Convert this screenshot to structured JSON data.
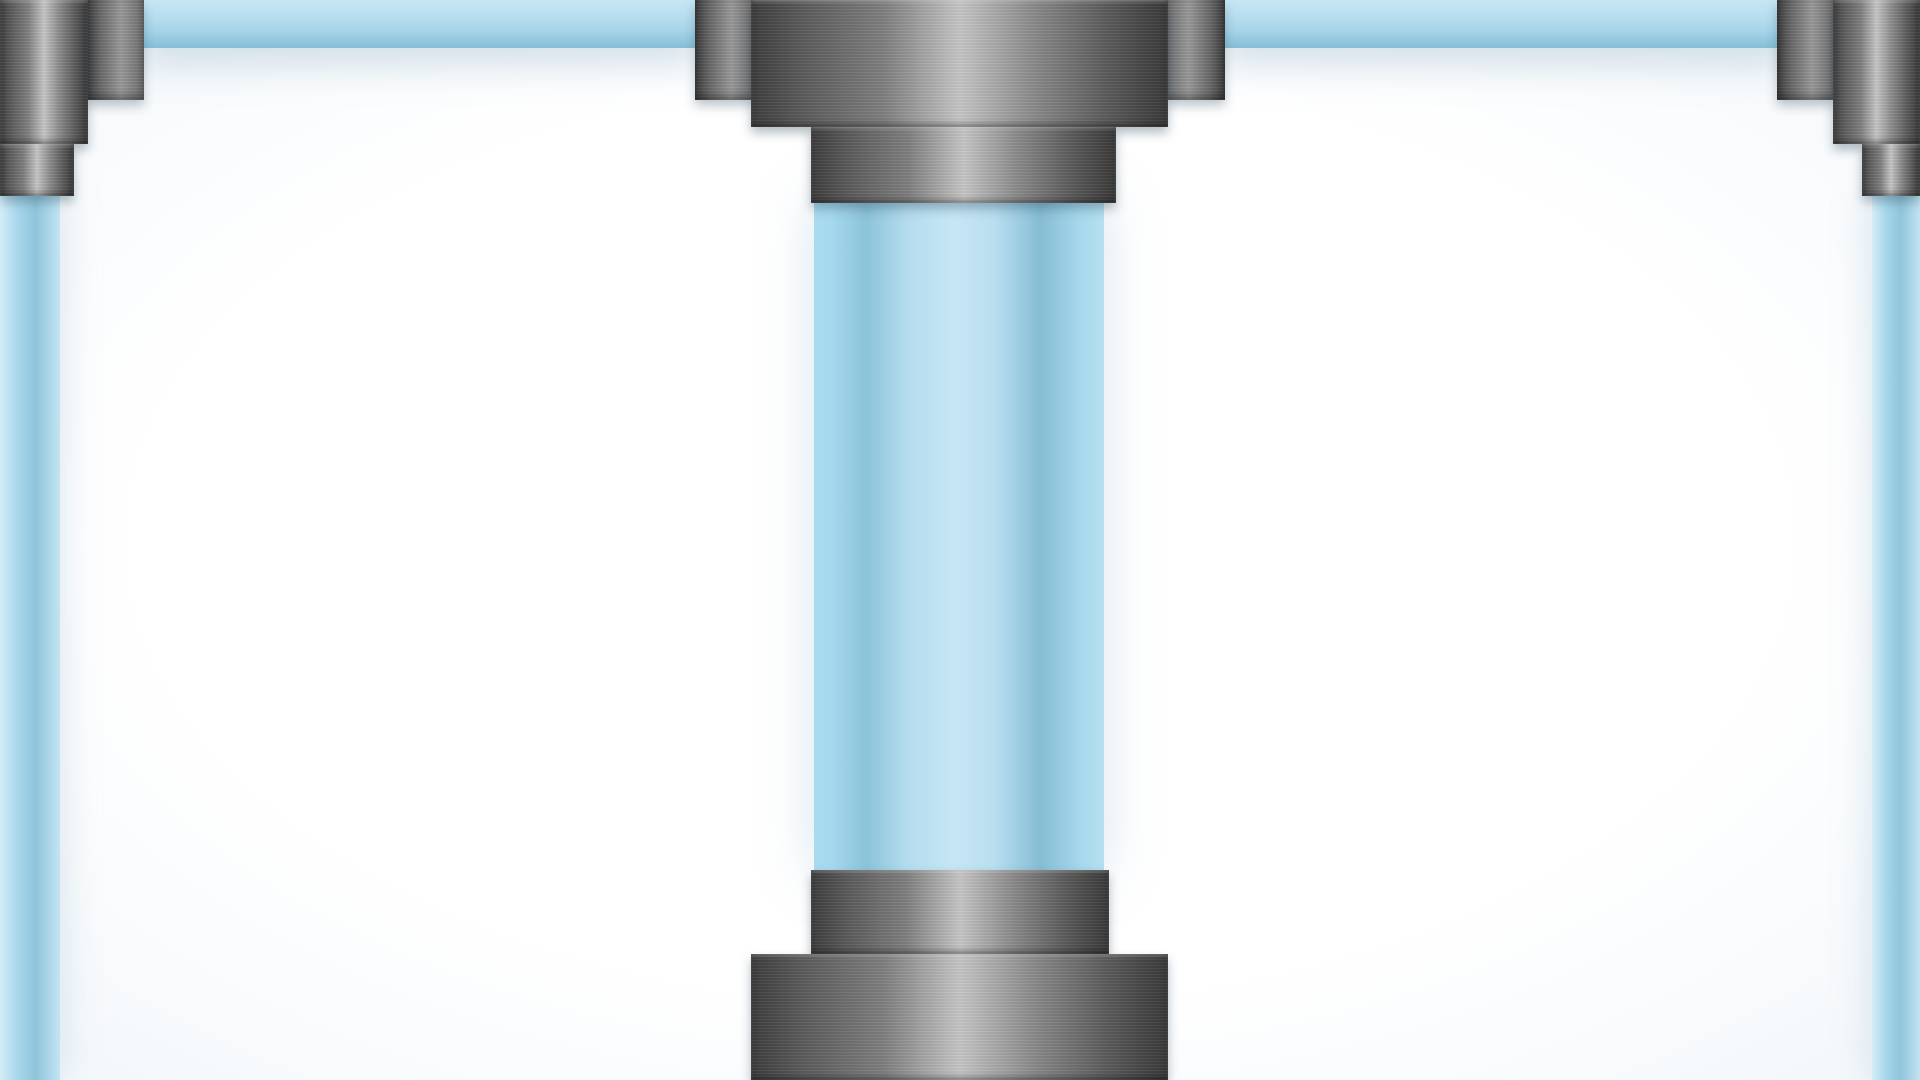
{
  "scene": {
    "kind": "pipe-puzzle-view",
    "colors": {
      "background": "#ffffff",
      "glass_light": "#c7e6f3",
      "glass_mid": "#a9d6ea",
      "glass_dark": "#86bfd6",
      "metal_dark": "#3e3e3e",
      "metal_light": "#c6c6c6"
    },
    "pieces": [
      "top-horizontal-pipe-left",
      "top-horizontal-pipe-right",
      "center-vertical-pipe",
      "left-edge-vertical-pipe",
      "right-edge-vertical-pipe",
      "top-center-connector",
      "bottom-center-connector",
      "top-left-corner-connector",
      "top-right-corner-connector"
    ]
  }
}
